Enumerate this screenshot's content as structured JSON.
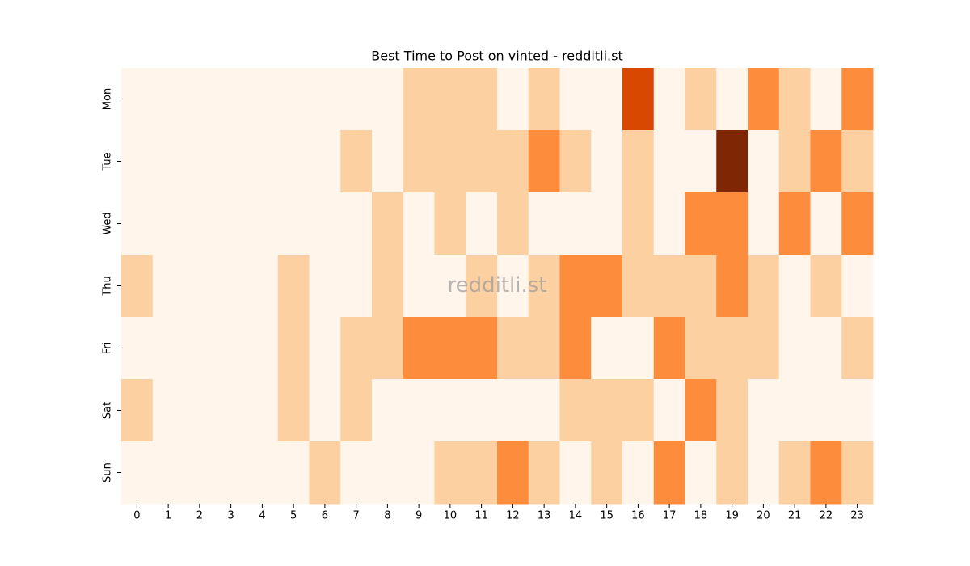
{
  "chart_data": {
    "type": "heatmap",
    "title": "Best Time to Post on vinted - redditli.st",
    "watermark": "redditli.st",
    "x": [
      0,
      1,
      2,
      3,
      4,
      5,
      6,
      7,
      8,
      9,
      10,
      11,
      12,
      13,
      14,
      15,
      16,
      17,
      18,
      19,
      20,
      21,
      22,
      23
    ],
    "y": [
      "Mon",
      "Tue",
      "Wed",
      "Thu",
      "Fri",
      "Sat",
      "Sun"
    ],
    "values": [
      [
        0,
        0,
        0,
        0,
        0,
        0,
        0,
        0,
        0,
        1,
        1,
        1,
        0,
        1,
        0,
        0,
        3,
        0,
        1,
        0,
        2,
        1,
        0,
        2
      ],
      [
        0,
        0,
        0,
        0,
        0,
        0,
        0,
        1,
        0,
        1,
        1,
        1,
        1,
        2,
        1,
        0,
        1,
        0,
        0,
        4,
        0,
        1,
        2,
        1
      ],
      [
        0,
        0,
        0,
        0,
        0,
        0,
        0,
        0,
        1,
        0,
        1,
        0,
        1,
        0,
        0,
        0,
        1,
        0,
        2,
        2,
        0,
        2,
        0,
        2
      ],
      [
        1,
        0,
        0,
        0,
        0,
        1,
        0,
        0,
        1,
        0,
        0,
        1,
        0,
        1,
        2,
        2,
        1,
        1,
        1,
        2,
        1,
        0,
        1,
        0
      ],
      [
        0,
        0,
        0,
        0,
        0,
        1,
        0,
        1,
        1,
        2,
        2,
        2,
        1,
        1,
        2,
        0,
        0,
        2,
        1,
        1,
        1,
        0,
        0,
        1
      ],
      [
        1,
        0,
        0,
        0,
        0,
        1,
        0,
        1,
        0,
        0,
        0,
        0,
        0,
        0,
        1,
        1,
        1,
        0,
        2,
        1,
        0,
        0,
        0,
        0
      ],
      [
        0,
        0,
        0,
        0,
        0,
        0,
        1,
        0,
        0,
        0,
        1,
        1,
        2,
        1,
        0,
        1,
        0,
        2,
        0,
        1,
        0,
        1,
        2,
        1
      ]
    ],
    "zlim": [
      0,
      4
    ],
    "colorscale": [
      "#fff5eb",
      "#fdd0a2",
      "#fd8d3c",
      "#d94801",
      "#7f2704"
    ]
  }
}
